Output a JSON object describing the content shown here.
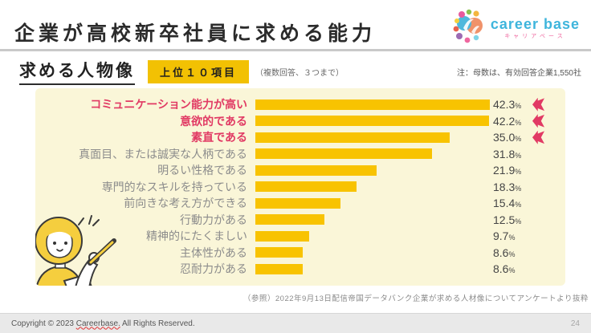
{
  "header": {
    "title": "企業が高校新卒社員に求める能力",
    "logo": {
      "name": "career base",
      "subtitle": "キャリアベース"
    }
  },
  "section": {
    "title": "求める人物像",
    "badge": "上位１０項目",
    "note_inline": "（複数回答、３つまで）",
    "note_right": "注：母数は、有効回答企業1,550社"
  },
  "chart_data": {
    "type": "bar",
    "orientation": "horizontal",
    "title": "求める人物像（上位10項目）",
    "categories": [
      "コミュニケーション能力が高い",
      "意欲的である",
      "素直である",
      "真面目、または誠実な人柄である",
      "明るい性格である",
      "専門的なスキルを持っている",
      "前向きな考え方ができる",
      "行動力がある",
      "精神的にたくましい",
      "主体性がある",
      "忍耐力がある"
    ],
    "values": [
      42.3,
      42.2,
      35.0,
      31.8,
      21.9,
      18.3,
      15.4,
      12.5,
      9.7,
      8.6,
      8.6
    ],
    "value_labels": [
      "42.3",
      "42.2",
      "35.0",
      "31.8",
      "21.9",
      "18.3",
      "15.4",
      "12.5",
      "9.7",
      "8.6",
      "8.6"
    ],
    "value_suffix": "%",
    "xlim": [
      0,
      45
    ],
    "highlighted_top": 3,
    "grid": false,
    "legend": false,
    "bar_color": "#f8c301",
    "highlight_color": "#e13a64",
    "label_color": "#8c8c8c",
    "panel_bg": "#faf6d8"
  },
  "citation": "（参照）2022年9月13日配信帝国データバンク企業が求める人材像についてアンケートより抜粋",
  "footer": {
    "copyright_prefix": "Copyright © 2023 ",
    "brand": "Careerbase.",
    "copyright_suffix": " All Rights Reserved.",
    "page": "24"
  }
}
